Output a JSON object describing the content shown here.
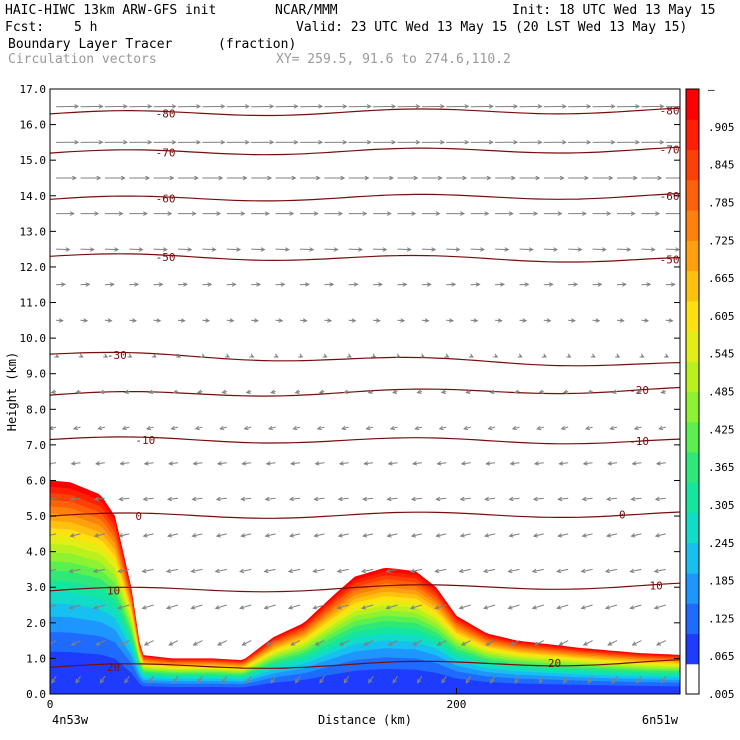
{
  "header": {
    "model": "HAIC-HIWC 13km ARW-GFS init",
    "org": "NCAR/MMM",
    "init": "Init: 18 UTC Wed 13 May 15",
    "fcst_label": "Fcst:",
    "fcst_value": "5 h",
    "valid": "Valid: 23 UTC Wed 13 May 15 (20 LST Wed 13 May 15)",
    "field": "Boundary Layer Tracer",
    "units": "(fraction)",
    "vectors": "Circulation vectors",
    "xy": "XY= 259.5, 91.6 to 274.6,110.2"
  },
  "colors": {
    "contour": "#7a0c0c",
    "vector": "#808080",
    "colorbar": [
      "#ffffff",
      "#1e3cff",
      "#1f6aff",
      "#1e96ff",
      "#16c0f0",
      "#10dcc8",
      "#14e6a0",
      "#2ee878",
      "#5af050",
      "#8cf232",
      "#b9f01e",
      "#e2ee14",
      "#ffe010",
      "#ffc00e",
      "#ffa00c",
      "#ff800a",
      "#ff6008",
      "#ff4006",
      "#ff2004",
      "#ff0000"
    ]
  },
  "chart_data": {
    "type": "heatmap",
    "title": "Boundary Layer Tracer",
    "xlabel": "Distance (km)",
    "ylabel": "Height (km)",
    "xlim": [
      0,
      310
    ],
    "ylim": [
      0.0,
      17.0
    ],
    "x_ticks": [
      0,
      200
    ],
    "y_ticks": [
      "0.0",
      "1.0",
      "2.0",
      "3.0",
      "4.0",
      "5.0",
      "6.0",
      "7.0",
      "8.0",
      "9.0",
      "10.0",
      "11.0",
      "12.0",
      "13.0",
      "14.0",
      "15.0",
      "16.0",
      "17.0"
    ],
    "x_end_labels": [
      "4n53w",
      "6n51w"
    ],
    "colorbar_labels": [
      ".005",
      ".065",
      ".125",
      ".185",
      ".245",
      ".305",
      ".365",
      ".425",
      ".485",
      ".545",
      ".605",
      ".665",
      ".725",
      ".785",
      ".845",
      ".905",
      "–"
    ],
    "tracer_top_profile": {
      "x": [
        0,
        10,
        25,
        32,
        40,
        45,
        60,
        80,
        95,
        110,
        125,
        140,
        150,
        165,
        180,
        190,
        200,
        215,
        230,
        260,
        290,
        310
      ],
      "z": [
        6.0,
        5.95,
        5.6,
        5.0,
        3.0,
        1.1,
        1.0,
        1.0,
        0.95,
        1.6,
        2.0,
        2.8,
        3.3,
        3.55,
        3.45,
        3.0,
        2.2,
        1.7,
        1.5,
        1.3,
        1.15,
        1.1
      ]
    },
    "temperature_contours": [
      {
        "label": "-80",
        "left_z": 16.3,
        "right_z": 16.4,
        "label_xs": [
          52,
          300
        ]
      },
      {
        "label": "-70",
        "left_z": 15.2,
        "right_z": 15.3,
        "label_xs": [
          52,
          300
        ]
      },
      {
        "label": "-60",
        "left_z": 13.9,
        "right_z": 14.0,
        "label_xs": [
          52,
          300
        ]
      },
      {
        "label": "-50",
        "left_z": 12.3,
        "right_z": 12.2,
        "label_xs": [
          52,
          300
        ]
      },
      {
        "label": "-30",
        "left_z": 9.55,
        "right_z": 9.25,
        "label_xs": [
          28
        ]
      },
      {
        "label": "-20",
        "left_z": 8.4,
        "right_z": 8.55,
        "label_xs": [
          285
        ]
      },
      {
        "label": "-10",
        "left_z": 7.15,
        "right_z": 7.1,
        "label_xs": [
          42,
          285
        ]
      },
      {
        "label": "0",
        "left_z": 5.0,
        "right_z": 5.05,
        "label_xs": [
          42,
          280
        ]
      },
      {
        "label": "10",
        "left_z": 2.9,
        "right_z": 3.05,
        "label_xs": [
          28,
          295
        ]
      },
      {
        "label": "20",
        "left_z": 0.75,
        "right_z": 0.9,
        "label_xs": [
          28,
          245
        ]
      }
    ],
    "circulation_vectors": {
      "description_rows": [
        {
          "z": 16.5,
          "u": 1.0,
          "w": 0.02
        },
        {
          "z": 15.5,
          "u": 1.0,
          "w": 0.01
        },
        {
          "z": 14.5,
          "u": 0.9,
          "w": 0.0
        },
        {
          "z": 13.5,
          "u": 0.8,
          "w": 0.0
        },
        {
          "z": 12.5,
          "u": 0.6,
          "w": -0.02
        },
        {
          "z": 11.5,
          "u": 0.4,
          "w": 0.02
        },
        {
          "z": 10.5,
          "u": 0.3,
          "w": -0.02
        },
        {
          "z": 9.5,
          "u": 0.1,
          "w": -0.05
        },
        {
          "z": 8.5,
          "u": -0.2,
          "w": -0.05
        },
        {
          "z": 7.5,
          "u": -0.3,
          "w": -0.08
        },
        {
          "z": 6.5,
          "u": -0.4,
          "w": -0.05
        },
        {
          "z": 5.5,
          "u": -0.45,
          "w": -0.05
        },
        {
          "z": 4.5,
          "u": -0.45,
          "w": -0.1
        },
        {
          "z": 3.5,
          "u": -0.5,
          "w": -0.1
        },
        {
          "z": 2.5,
          "u": -0.5,
          "w": -0.15
        },
        {
          "z": 1.5,
          "u": -0.4,
          "w": -0.2
        },
        {
          "z": 0.5,
          "u": -0.2,
          "w": -0.3
        }
      ]
    }
  }
}
